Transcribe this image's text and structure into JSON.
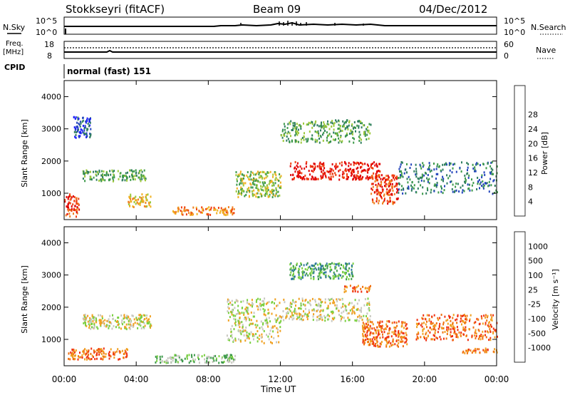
{
  "header": {
    "station": "Stokkseyri (fitACF)",
    "beam": "Beam 09",
    "date": "04/Dec/2012"
  },
  "top_panels": {
    "nsky_label": "N.Sky",
    "nsky_ticks": [
      "10^5",
      "10^0"
    ],
    "nsearch_label": "N.Search",
    "freq_label_1": "Freq.",
    "freq_label_2": "[MHz]",
    "freq_ticks": [
      "18",
      "8"
    ],
    "nave_label": "Nave",
    "nave_ticks": [
      "60",
      "0"
    ],
    "cpid_label": "CPID",
    "cpid_text": "normal (fast) 151"
  },
  "chart_data": [
    {
      "type": "heatmap",
      "name": "power",
      "ylabel": "Slant Range [km]",
      "xlabel": "Time UT",
      "x_ticks": [
        "00:00",
        "04:00",
        "08:00",
        "12:00",
        "16:00",
        "20:00",
        "00:00"
      ],
      "y_ticks": [
        "1000",
        "2000",
        "3000",
        "4000"
      ],
      "xlim_hours": [
        0,
        24
      ],
      "ylim_km": [
        180,
        4500
      ],
      "colorbar": {
        "label": "Power [dB]",
        "ticks": [
          "4",
          "8",
          "12",
          "16",
          "20",
          "24",
          "28"
        ],
        "colors": [
          "#1a1aff",
          "#2244bb",
          "#2e7d5e",
          "#3d9a4a",
          "#9cc83a",
          "#f0b020",
          "#f08020",
          "#f04010",
          "#e00000"
        ]
      },
      "regions": [
        {
          "t0": 0.0,
          "t1": 0.8,
          "r0": 300,
          "r1": 1000,
          "level": 7
        },
        {
          "t0": 1.0,
          "t1": 4.5,
          "r0": 1400,
          "r1": 1750,
          "level": 3
        },
        {
          "t0": 0.5,
          "t1": 1.5,
          "r0": 2700,
          "r1": 3400,
          "level": 1
        },
        {
          "t0": 3.5,
          "t1": 4.8,
          "r0": 600,
          "r1": 1000,
          "level": 5
        },
        {
          "t0": 6.0,
          "t1": 9.5,
          "r0": 350,
          "r1": 600,
          "level": 6
        },
        {
          "t0": 9.5,
          "t1": 12.0,
          "r0": 900,
          "r1": 1700,
          "level": 4
        },
        {
          "t0": 12.5,
          "t1": 17.5,
          "r0": 1450,
          "r1": 2000,
          "level": 8
        },
        {
          "t0": 12.0,
          "t1": 17.0,
          "r0": 2600,
          "r1": 3300,
          "level": 3
        },
        {
          "t0": 17.0,
          "t1": 18.5,
          "r0": 700,
          "r1": 1600,
          "level": 7
        },
        {
          "t0": 18.5,
          "t1": 24.0,
          "r0": 1000,
          "r1": 2000,
          "level": 2
        }
      ]
    },
    {
      "type": "heatmap",
      "name": "velocity",
      "ylabel": "Slant Range [km]",
      "xlabel": "Time UT",
      "x_ticks": [
        "00:00",
        "04:00",
        "08:00",
        "12:00",
        "16:00",
        "20:00",
        "00:00"
      ],
      "y_ticks": [
        "1000",
        "2000",
        "3000",
        "4000"
      ],
      "xlim_hours": [
        0,
        24
      ],
      "ylim_km": [
        180,
        4500
      ],
      "colorbar": {
        "label": "Velocity [m s⁻¹]",
        "ticks": [
          "1000",
          "500",
          "100",
          "25",
          "-25",
          "-100",
          "-500",
          "-1000"
        ],
        "colors": [
          "#1a3ac8",
          "#2e7a9e",
          "#3d9a4a",
          "#7ad040",
          "#c8c8c0",
          "#f0a020",
          "#f07010",
          "#f03010",
          "#e00000"
        ]
      },
      "regions": [
        {
          "t0": 1.0,
          "t1": 4.8,
          "r0": 1350,
          "r1": 1800,
          "level": 4
        },
        {
          "t0": 0.2,
          "t1": 3.5,
          "r0": 400,
          "r1": 750,
          "level": 6
        },
        {
          "t0": 5.0,
          "t1": 9.5,
          "r0": 300,
          "r1": 550,
          "level": 3
        },
        {
          "t0": 9.0,
          "t1": 12.0,
          "r0": 900,
          "r1": 2300,
          "level": 4
        },
        {
          "t0": 12.0,
          "t1": 17.0,
          "r0": 1600,
          "r1": 2300,
          "level": 4
        },
        {
          "t0": 12.5,
          "t1": 16.0,
          "r0": 2900,
          "r1": 3400,
          "level": 2
        },
        {
          "t0": 15.5,
          "t1": 17.0,
          "r0": 2500,
          "r1": 2700,
          "level": 6
        },
        {
          "t0": 16.5,
          "t1": 19.0,
          "r0": 800,
          "r1": 1600,
          "level": 6
        },
        {
          "t0": 19.5,
          "t1": 24.0,
          "r0": 1000,
          "r1": 1800,
          "level": 6
        },
        {
          "t0": 22.0,
          "t1": 24.0,
          "r0": 600,
          "r1": 750,
          "level": 6
        }
      ]
    }
  ]
}
